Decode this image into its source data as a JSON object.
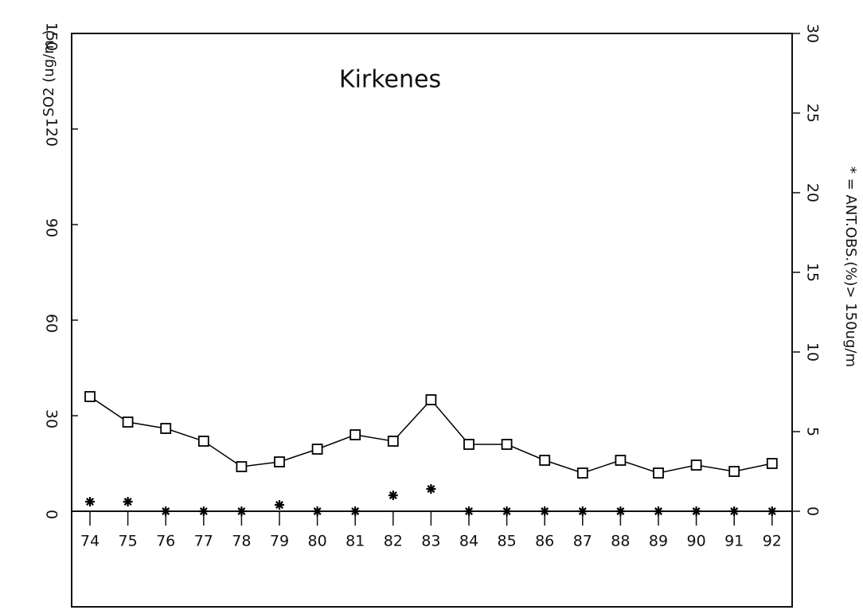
{
  "chart_data": {
    "type": "line",
    "title": "Kirkenes",
    "ylabel": "SO2 (ug/m )",
    "y2label": "* = ANT.OBS.(%)> 150ug/m",
    "categories": [
      "74",
      "75",
      "76",
      "77",
      "78",
      "79",
      "80",
      "81",
      "82",
      "83",
      "84",
      "85",
      "86",
      "87",
      "88",
      "89",
      "90",
      "91",
      "92"
    ],
    "series": [
      {
        "color": "#000000",
        "marker": "square",
        "line": true,
        "values": [
          36,
          28,
          26,
          22,
          14,
          15.5,
          19.5,
          24,
          22,
          35,
          21,
          21,
          16,
          12,
          16,
          12,
          14.5,
          12.5,
          15
        ]
      },
      {
        "color": "#000000",
        "marker": "star",
        "line": false,
        "axis": "y2",
        "values": [
          0.6,
          0.6,
          0,
          0,
          0,
          0.4,
          0,
          0,
          1.0,
          1.4,
          0,
          0,
          0,
          0,
          0,
          0,
          0,
          0,
          0
        ]
      }
    ],
    "ylim": [
      -30,
      150
    ],
    "yticks": [
      0,
      30,
      60,
      90,
      120,
      150
    ],
    "y2lim": [
      -6,
      30
    ],
    "y2ticks": [
      0,
      5,
      10,
      15,
      20,
      25,
      30
    ],
    "grid": false
  }
}
